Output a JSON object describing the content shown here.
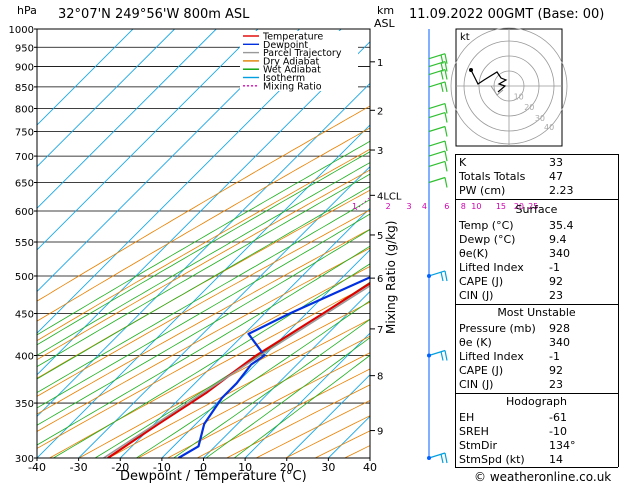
{
  "header": {
    "location": "32°07'N  249°56'W  800m  ASL",
    "datetime": "11.09.2022  00GMT  (Base: 00)",
    "hpa_label": "hPa",
    "km_label": "km",
    "asl_label": "ASL",
    "mixing_axis_label": "Mixing Ratio (g/kg)"
  },
  "footer": {
    "copyright": "© weatheronline.co.uk"
  },
  "chart_data": {
    "type": "line",
    "xlabel": "Dewpoint / Temperature (°C)",
    "ylabel": "hPa",
    "xlim": [
      -40,
      40
    ],
    "ylim": [
      1000,
      300
    ],
    "y_scale": "log",
    "x_ticks": [
      "-40",
      "-30",
      "-20",
      "-10",
      "0",
      "10",
      "20",
      "30",
      "40"
    ],
    "y_ticks": [
      "300",
      "350",
      "400",
      "450",
      "500",
      "550",
      "600",
      "650",
      "700",
      "750",
      "800",
      "850",
      "900",
      "950",
      "1000"
    ],
    "km_ticks": [
      {
        "label": "1",
        "p": 912
      },
      {
        "label": "2",
        "p": 796
      },
      {
        "label": "3",
        "p": 712
      },
      {
        "label": "4LCL",
        "p": 627
      },
      {
        "label": "5",
        "p": 561
      },
      {
        "label": "6",
        "p": 497
      },
      {
        "label": "7",
        "p": 431
      },
      {
        "label": "8",
        "p": 378
      },
      {
        "label": "9",
        "p": 324
      }
    ],
    "mixing_ratio_labels": [
      "1",
      "2",
      "3",
      "4",
      "6",
      "8",
      "10",
      "15",
      "20",
      "25"
    ],
    "legend": [
      {
        "name": "Temperature",
        "color": "#e00000"
      },
      {
        "name": "Dewpoint",
        "color": "#0030e0"
      },
      {
        "name": "Parcel Trajectory",
        "color": "#999999"
      },
      {
        "name": "Dry Adiabat",
        "color": "#e08000"
      },
      {
        "name": "Wet Adiabat",
        "color": "#00a000"
      },
      {
        "name": "Isotherm",
        "color": "#00a0e0"
      },
      {
        "name": "Mixing Ratio",
        "color": "#e000c0"
      }
    ],
    "series": [
      {
        "name": "Temperature",
        "points": [
          [
            935,
            35.4
          ],
          [
            928,
            34.5
          ],
          [
            900,
            32
          ],
          [
            850,
            27.5
          ],
          [
            800,
            22.5
          ],
          [
            750,
            18.5
          ],
          [
            700,
            14
          ],
          [
            650,
            10.5
          ],
          [
            600,
            8.5
          ],
          [
            550,
            4.5
          ],
          [
            500,
            -1
          ],
          [
            450,
            -6
          ],
          [
            400,
            -12
          ],
          [
            380,
            -13.5
          ],
          [
            360,
            -15
          ],
          [
            330,
            -19
          ],
          [
            300,
            -23
          ]
        ]
      },
      {
        "name": "Dewpoint",
        "points": [
          [
            935,
            9.4
          ],
          [
            928,
            8
          ],
          [
            900,
            10
          ],
          [
            850,
            10.5
          ],
          [
            800,
            11
          ],
          [
            750,
            13
          ],
          [
            700,
            15
          ],
          [
            650,
            2
          ],
          [
            620,
            -2.5
          ],
          [
            600,
            -3
          ],
          [
            550,
            -6
          ],
          [
            520,
            0
          ],
          [
            500,
            -3
          ],
          [
            450,
            -14
          ],
          [
            425,
            -19
          ],
          [
            400,
            -10
          ],
          [
            390,
            -11
          ],
          [
            370,
            -10
          ],
          [
            355,
            -10
          ],
          [
            330,
            -8
          ],
          [
            310,
            -4
          ],
          [
            300,
            -6
          ]
        ]
      },
      {
        "name": "Parcel Trajectory",
        "points": [
          [
            935,
            35.4
          ],
          [
            850,
            28.5
          ],
          [
            780,
            21
          ],
          [
            700,
            14.5
          ],
          [
            627,
            11
          ],
          [
            600,
            9
          ],
          [
            500,
            0
          ],
          [
            400,
            -11
          ],
          [
            300,
            -24
          ]
        ]
      }
    ]
  },
  "hodograph": {
    "label": "kt",
    "ring_labels": [
      "10",
      "20",
      "30",
      "40"
    ]
  },
  "indices": {
    "k_label": "K",
    "k": "33",
    "tt_label": "Totals Totals",
    "tt": "47",
    "pw_label": "PW (cm)",
    "pw": "2.23"
  },
  "surface": {
    "title": "Surface",
    "rows": [
      {
        "k": "Temp (°C)",
        "v": "35.4"
      },
      {
        "k": "Dewp (°C)",
        "v": "9.4"
      },
      {
        "k": "θe(K)",
        "v": "340"
      },
      {
        "k": "Lifted Index",
        "v": "-1"
      },
      {
        "k": "CAPE (J)",
        "v": "92"
      },
      {
        "k": "CIN (J)",
        "v": "23"
      }
    ]
  },
  "most_unstable": {
    "title": "Most Unstable",
    "rows": [
      {
        "k": "Pressure (mb)",
        "v": "928"
      },
      {
        "k": "θe (K)",
        "v": "340"
      },
      {
        "k": "Lifted Index",
        "v": "-1"
      },
      {
        "k": "CAPE (J)",
        "v": "92"
      },
      {
        "k": "CIN (J)",
        "v": "23"
      }
    ]
  },
  "hodograph_table": {
    "title": "Hodograph",
    "rows": [
      {
        "k": "EH",
        "v": "-61"
      },
      {
        "k": "SREH",
        "v": "-10"
      },
      {
        "k": "StmDir",
        "v": "134°"
      },
      {
        "k": "StmSpd (kt)",
        "v": "14"
      }
    ]
  }
}
